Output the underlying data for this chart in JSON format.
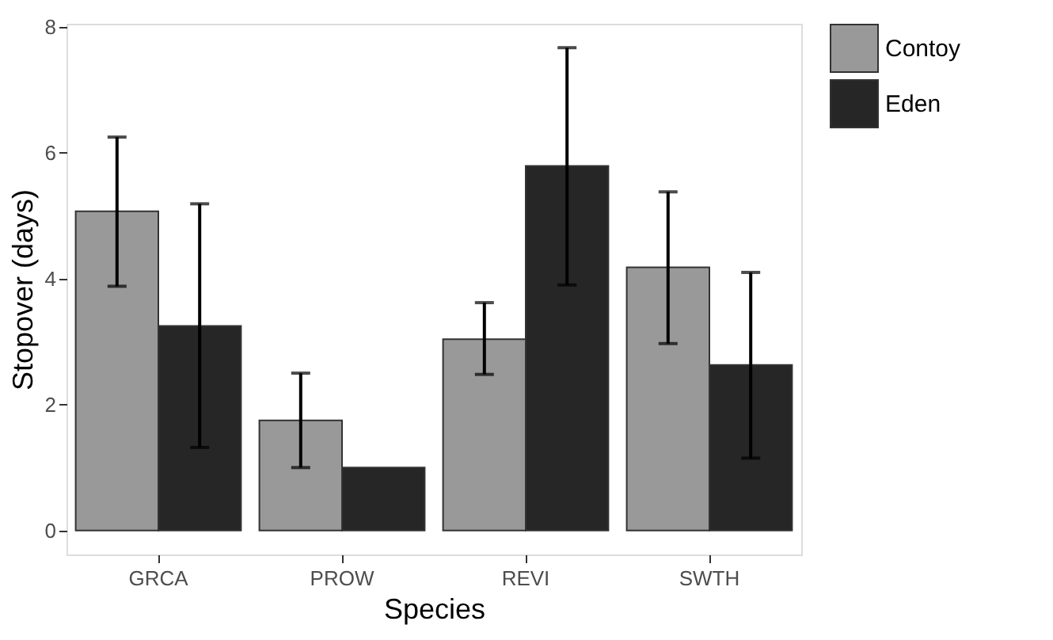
{
  "chart_data": {
    "type": "bar",
    "xlabel": "Species",
    "ylabel": "Stopover (days)",
    "categories": [
      "GRCA",
      "PROW",
      "REVI",
      "SWTH"
    ],
    "series": [
      {
        "name": "Contoy",
        "color": "#999999",
        "values": [
          5.07,
          1.75,
          3.04,
          4.18
        ],
        "errors": [
          [
            3.88,
            6.25
          ],
          [
            1.0,
            2.5
          ],
          [
            2.48,
            3.62
          ],
          [
            2.97,
            5.38
          ]
        ]
      },
      {
        "name": "Eden",
        "color": "#262626",
        "values": [
          3.25,
          1.0,
          5.79,
          2.63
        ],
        "errors": [
          [
            1.32,
            5.19
          ],
          null,
          [
            3.9,
            7.67
          ],
          [
            1.15,
            4.1
          ]
        ]
      }
    ],
    "ylim": [
      -0.38,
      8.05
    ],
    "yticks": [
      0,
      2,
      4,
      6,
      8
    ],
    "grid": false,
    "legend": "right"
  }
}
